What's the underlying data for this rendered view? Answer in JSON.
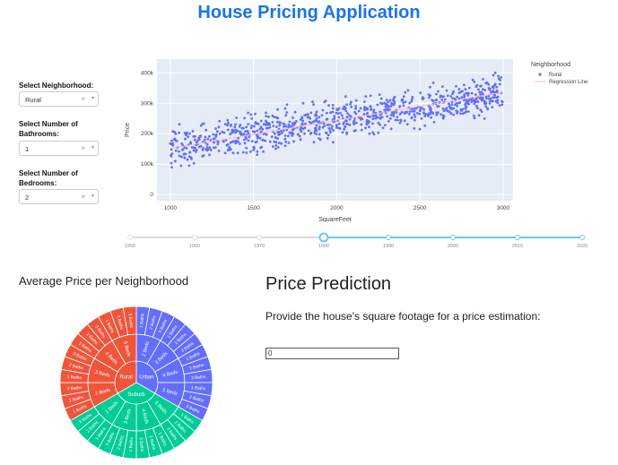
{
  "app": {
    "title": "House Pricing Application"
  },
  "filters": {
    "neighborhood": {
      "label": "Select Neighborhood:",
      "value": "Rural",
      "clear": "×",
      "caret": "▾"
    },
    "bathrooms": {
      "label": "Select Number of Bathrooms:",
      "value": "1",
      "clear": "×",
      "caret": "▾"
    },
    "bedrooms": {
      "label": "Select Number of Bedrooms:",
      "value": "2",
      "clear": "×",
      "caret": "▾"
    }
  },
  "slider": {
    "marks": [
      "1950",
      "1960",
      "1970",
      "1980",
      "1990",
      "2000",
      "2010",
      "2020"
    ],
    "value": 1980,
    "colors": {
      "active": "#6ec6f0",
      "inactive": "#dddddd"
    }
  },
  "chart_data": {
    "type": "scatter",
    "xlabel": "SquareFeet",
    "ylabel": "Price",
    "xlim": [
      920,
      3060
    ],
    "ylim": [
      -20000,
      445000
    ],
    "xticks": [
      1000,
      1500,
      2000,
      2500,
      3000
    ],
    "xtick_labels": [
      "1000",
      "1500",
      "2000",
      "2500",
      "3000"
    ],
    "yticks": [
      0,
      100000,
      200000,
      300000,
      400000
    ],
    "ytick_labels": [
      "0",
      "100k",
      "200k",
      "300k",
      "400k"
    ],
    "grid": true,
    "legend": {
      "title": "Neighborhood",
      "placement": "right"
    },
    "series": [
      {
        "name": "Rural",
        "kind": "markers",
        "color": "#636efa",
        "n_points": 900,
        "x_range": [
          1000,
          3000
        ],
        "trend": {
          "slope": 92,
          "intercept": 60000
        },
        "noise_sd": 55000
      },
      {
        "name": "Regression Line",
        "kind": "line",
        "color": "#ffb6c1",
        "x": [
          1000,
          3000
        ],
        "y": [
          152000,
          336000
        ]
      }
    ]
  },
  "sunburst": {
    "title": "Average Price per Neighborhood",
    "center_labels": [
      "Urban",
      "Rural",
      "Suburb"
    ],
    "colors": {
      "Urban": "#636efa",
      "Rural": "#ef553b",
      "Suburb": "#00cc96"
    },
    "rings": [
      {
        "name": "Urban",
        "children": [
          "2 Beds",
          "3 Beds",
          "4 Beds",
          "5 Beds"
        ],
        "leaf_labels": [
          "1 Baths",
          "2 Baths",
          "3 Baths"
        ]
      },
      {
        "name": "Suburb",
        "children": [
          "5 Beds",
          "4 Beds",
          "3 Beds",
          "2 Beds"
        ],
        "leaf_labels": [
          "1 Baths",
          "2 Baths",
          "3 Baths"
        ]
      },
      {
        "name": "Rural",
        "children": [
          "2 Beds",
          "3 Beds",
          "4 Beds",
          "5 Beds"
        ],
        "leaf_labels": [
          "1 Baths",
          "2 Baths",
          "3 Baths"
        ]
      }
    ]
  },
  "prediction": {
    "title": "Price Prediction",
    "description": "Provide the house's square footage for a price estimation:",
    "input_value": "0"
  }
}
